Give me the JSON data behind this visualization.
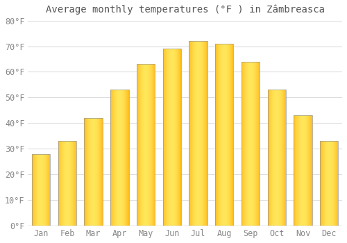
{
  "months": [
    "Jan",
    "Feb",
    "Mar",
    "Apr",
    "May",
    "Jun",
    "Jul",
    "Aug",
    "Sep",
    "Oct",
    "Nov",
    "Dec"
  ],
  "values": [
    28,
    33,
    42,
    53,
    63,
    69,
    72,
    71,
    64,
    53,
    43,
    33
  ],
  "title": "Average monthly temperatures (°F ) in Zâmbreasca",
  "ylim": [
    0,
    80
  ],
  "yticks": [
    0,
    10,
    20,
    30,
    40,
    50,
    60,
    70,
    80
  ],
  "ytick_labels": [
    "0°F",
    "10°F",
    "20°F",
    "30°F",
    "40°F",
    "50°F",
    "60°F",
    "70°F",
    "80°F"
  ],
  "bar_color_center": "#FFD740",
  "bar_color_edge": "#FFA500",
  "bar_edge_color": "#888888",
  "background_color": "#FFFFFF",
  "grid_color": "#DDDDDD",
  "title_fontsize": 10,
  "tick_fontsize": 8.5,
  "tick_color": "#888888",
  "title_color": "#555555"
}
